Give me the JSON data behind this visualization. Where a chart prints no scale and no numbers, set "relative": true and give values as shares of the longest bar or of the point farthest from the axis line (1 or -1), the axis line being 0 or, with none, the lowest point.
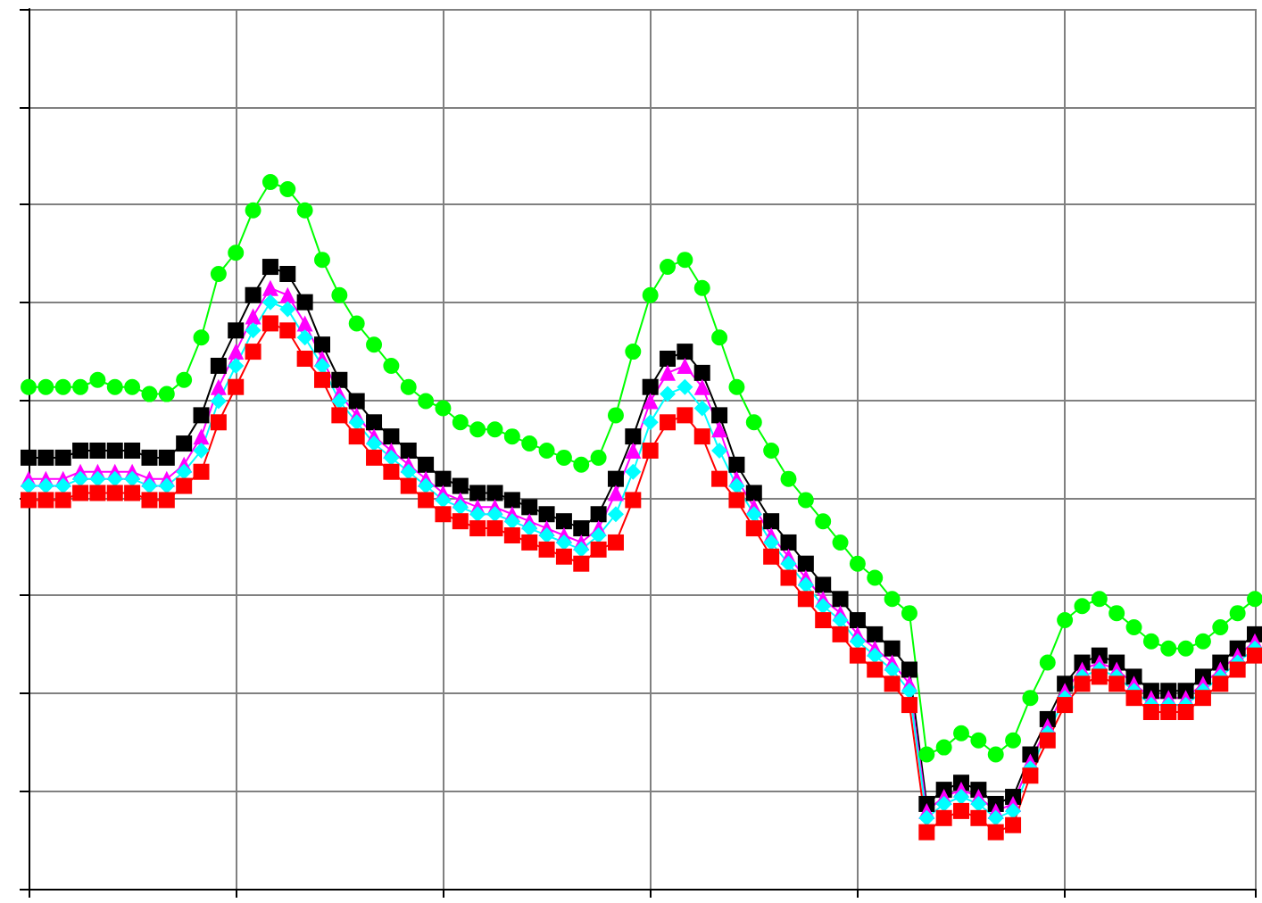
{
  "chart_data": {
    "type": "line",
    "relative": true,
    "grid": true,
    "line_style": "solid",
    "categories": [
      null,
      null,
      null,
      null,
      null,
      null,
      null,
      null,
      null,
      null,
      null,
      null,
      null,
      null,
      null,
      null,
      null,
      null,
      null,
      null,
      null,
      null,
      null,
      null,
      null,
      null,
      null,
      null,
      null,
      null,
      null,
      null,
      null,
      null,
      null,
      null,
      null,
      null,
      null,
      null,
      null,
      null,
      null,
      null,
      null,
      null,
      null,
      null,
      null,
      null,
      null,
      null,
      null,
      null,
      null,
      null,
      null,
      null,
      null,
      null,
      null,
      null,
      null,
      null,
      null,
      null,
      null,
      null,
      null,
      null,
      null,
      null
    ],
    "series": [
      {
        "color": "#000000",
        "marker": "square",
        "values": [
          0.61,
          0.61,
          0.61,
          0.62,
          0.62,
          0.62,
          0.62,
          0.61,
          0.61,
          0.63,
          0.67,
          0.74,
          0.79,
          0.84,
          0.88,
          0.87,
          0.83,
          0.77,
          0.72,
          0.69,
          0.66,
          0.64,
          0.62,
          0.6,
          0.58,
          0.57,
          0.56,
          0.56,
          0.55,
          0.54,
          0.53,
          0.52,
          0.51,
          0.53,
          0.58,
          0.64,
          0.71,
          0.75,
          0.76,
          0.73,
          0.67,
          0.6,
          0.56,
          0.52,
          0.49,
          0.46,
          0.43,
          0.41,
          0.38,
          0.36,
          0.34,
          0.31,
          0.12,
          0.14,
          0.15,
          0.14,
          0.12,
          0.13,
          0.19,
          0.24,
          0.29,
          0.32,
          0.33,
          0.32,
          0.3,
          0.28,
          0.28,
          0.28,
          0.3,
          0.32,
          0.34,
          0.36
        ]
      },
      {
        "color": "#ff00ff",
        "marker": "triangle",
        "values": [
          0.58,
          0.58,
          0.58,
          0.59,
          0.59,
          0.59,
          0.59,
          0.58,
          0.58,
          0.6,
          0.64,
          0.71,
          0.76,
          0.81,
          0.85,
          0.84,
          0.8,
          0.75,
          0.7,
          0.67,
          0.64,
          0.62,
          0.6,
          0.58,
          0.56,
          0.55,
          0.54,
          0.54,
          0.53,
          0.52,
          0.51,
          0.5,
          0.49,
          0.51,
          0.56,
          0.62,
          0.69,
          0.73,
          0.74,
          0.71,
          0.65,
          0.58,
          0.54,
          0.5,
          0.47,
          0.44,
          0.41,
          0.39,
          0.36,
          0.34,
          0.32,
          0.29,
          0.11,
          0.13,
          0.14,
          0.13,
          0.11,
          0.12,
          0.18,
          0.23,
          0.28,
          0.31,
          0.32,
          0.31,
          0.29,
          0.27,
          0.27,
          0.27,
          0.29,
          0.31,
          0.33,
          0.35
        ]
      },
      {
        "color": "#00ffff",
        "marker": "diamond",
        "values": [
          0.57,
          0.57,
          0.57,
          0.58,
          0.58,
          0.58,
          0.58,
          0.57,
          0.57,
          0.59,
          0.62,
          0.69,
          0.74,
          0.79,
          0.83,
          0.82,
          0.78,
          0.74,
          0.69,
          0.66,
          0.63,
          0.61,
          0.59,
          0.57,
          0.55,
          0.54,
          0.53,
          0.53,
          0.52,
          0.51,
          0.5,
          0.49,
          0.48,
          0.5,
          0.53,
          0.59,
          0.66,
          0.7,
          0.71,
          0.68,
          0.62,
          0.57,
          0.53,
          0.49,
          0.46,
          0.43,
          0.4,
          0.38,
          0.35,
          0.33,
          0.31,
          0.28,
          0.1,
          0.12,
          0.13,
          0.12,
          0.1,
          0.11,
          0.17,
          0.22,
          0.27,
          0.3,
          0.31,
          0.3,
          0.28,
          0.26,
          0.26,
          0.26,
          0.28,
          0.3,
          0.32,
          0.34
        ]
      },
      {
        "color": "#ff0000",
        "marker": "square",
        "values": [
          0.55,
          0.55,
          0.55,
          0.56,
          0.56,
          0.56,
          0.56,
          0.55,
          0.55,
          0.57,
          0.59,
          0.66,
          0.71,
          0.76,
          0.8,
          0.79,
          0.75,
          0.72,
          0.67,
          0.64,
          0.61,
          0.59,
          0.57,
          0.55,
          0.53,
          0.52,
          0.51,
          0.51,
          0.5,
          0.49,
          0.48,
          0.47,
          0.46,
          0.48,
          0.49,
          0.55,
          0.62,
          0.66,
          0.67,
          0.64,
          0.58,
          0.55,
          0.51,
          0.47,
          0.44,
          0.41,
          0.38,
          0.36,
          0.33,
          0.31,
          0.29,
          0.26,
          0.08,
          0.1,
          0.11,
          0.1,
          0.08,
          0.09,
          0.16,
          0.21,
          0.26,
          0.29,
          0.3,
          0.29,
          0.27,
          0.25,
          0.25,
          0.25,
          0.27,
          0.29,
          0.31,
          0.33
        ]
      },
      {
        "color": "#00ff00",
        "marker": "circle",
        "values": [
          0.71,
          0.71,
          0.71,
          0.71,
          0.72,
          0.71,
          0.71,
          0.7,
          0.7,
          0.72,
          0.78,
          0.87,
          0.9,
          0.96,
          1.0,
          0.99,
          0.96,
          0.89,
          0.84,
          0.8,
          0.77,
          0.74,
          0.71,
          0.69,
          0.68,
          0.66,
          0.65,
          0.65,
          0.64,
          0.63,
          0.62,
          0.61,
          0.6,
          0.61,
          0.67,
          0.76,
          0.84,
          0.88,
          0.89,
          0.85,
          0.78,
          0.71,
          0.66,
          0.62,
          0.58,
          0.55,
          0.52,
          0.49,
          0.46,
          0.44,
          0.41,
          0.39,
          0.19,
          0.2,
          0.22,
          0.21,
          0.19,
          0.21,
          0.27,
          0.32,
          0.38,
          0.4,
          0.41,
          0.39,
          0.37,
          0.35,
          0.34,
          0.34,
          0.35,
          0.37,
          0.39,
          0.41
        ]
      }
    ]
  }
}
